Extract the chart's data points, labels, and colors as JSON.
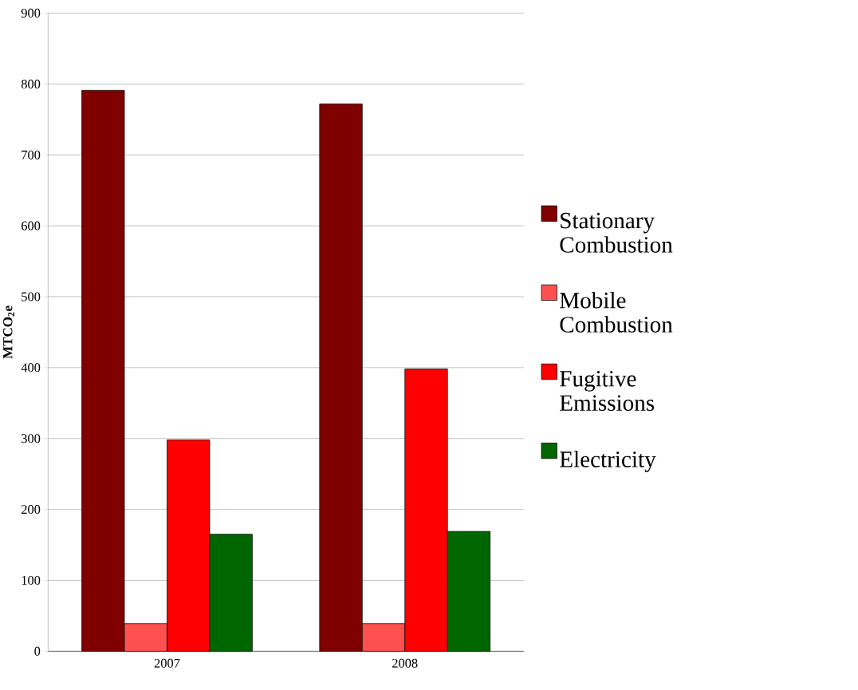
{
  "chart_data": {
    "type": "bar",
    "ylabel": "MTCO$_{2}$e",
    "categories": [
      "2007",
      "2008"
    ],
    "series": [
      {
        "name": "Stationary Combustion",
        "color": "#800000",
        "values": [
          791,
          772
        ]
      },
      {
        "name": "Mobile Combustion",
        "color": "#ff5050",
        "values": [
          39,
          39
        ]
      },
      {
        "name": "Fugitive Emissions",
        "color": "#ff0000",
        "values": [
          298,
          398
        ]
      },
      {
        "name": "Electricity",
        "color": "#006600",
        "values": [
          165,
          169
        ]
      }
    ],
    "ylim": [
      0,
      900
    ],
    "yticks": [
      0,
      100,
      200,
      300,
      400,
      500,
      600,
      700,
      800,
      900
    ],
    "grid": "y",
    "legend": "right"
  }
}
